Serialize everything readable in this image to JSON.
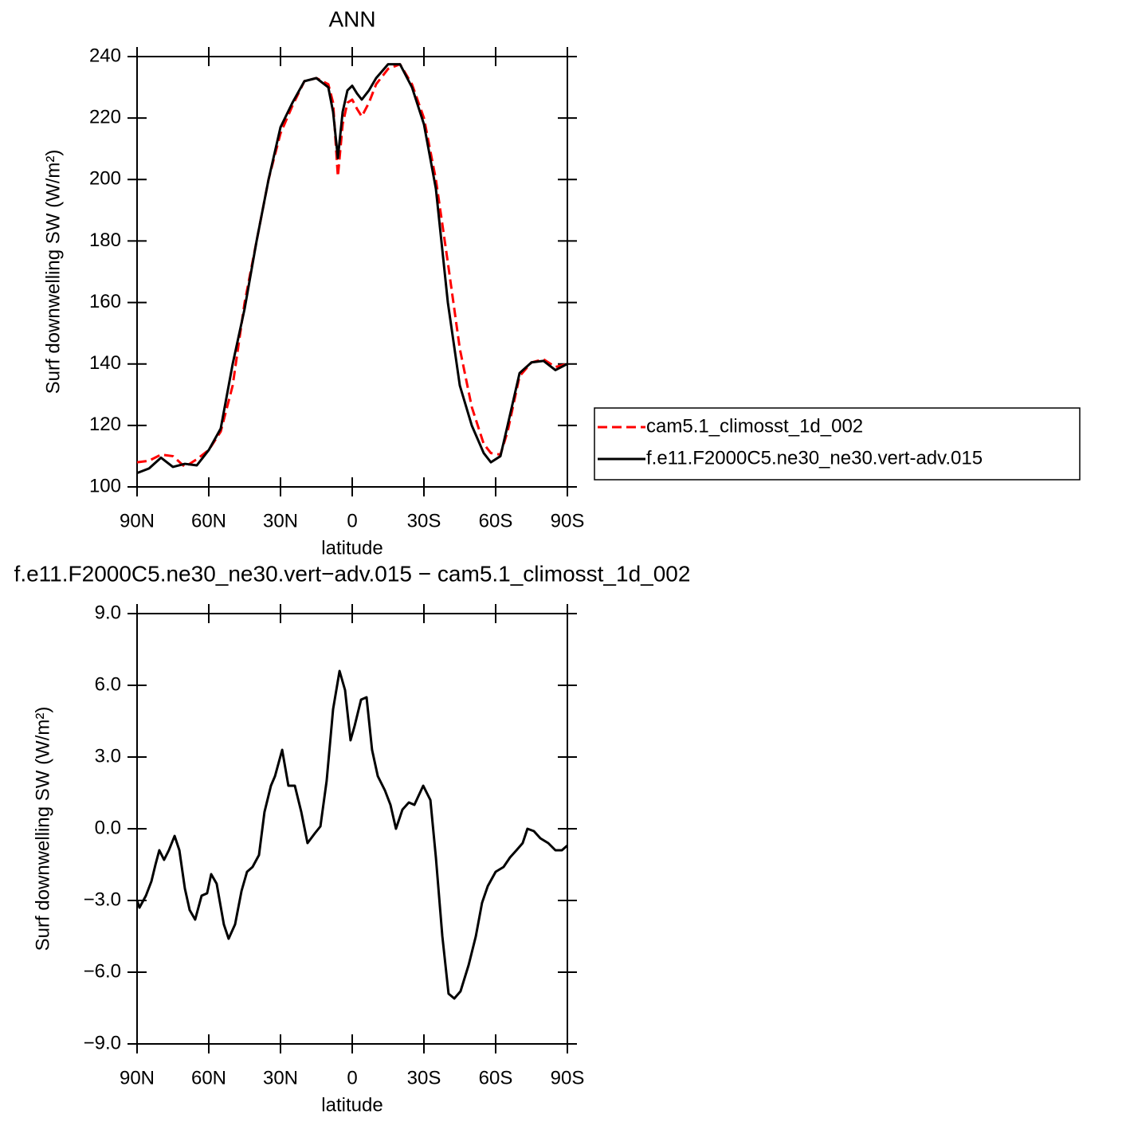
{
  "chart_data": [
    {
      "type": "line",
      "title": "ANN",
      "xlabel": "latitude",
      "ylabel": "Surf downwelling SW (W/m²)",
      "x": [
        90,
        85,
        80,
        75,
        70,
        65,
        60,
        55,
        50,
        45,
        40,
        35,
        30,
        25,
        20,
        15,
        10,
        8,
        6,
        4,
        2,
        0,
        -2,
        -4,
        -7,
        -10,
        -15,
        -20,
        -25,
        -30,
        -35,
        -40,
        -45,
        -50,
        -55,
        -58,
        -62,
        -65,
        -70,
        -75,
        -80,
        -85,
        -90
      ],
      "series": [
        {
          "name": "cam5.1_climosst_1d_002",
          "color": "#ff0000",
          "linestyle": "dashed",
          "values": [
            108,
            108.5,
            110.5,
            110,
            106.5,
            109,
            112,
            118,
            133,
            160,
            180,
            200,
            215,
            224,
            232,
            233,
            231,
            225,
            201,
            218,
            225,
            226,
            223,
            220.5,
            225,
            231,
            236,
            237.5,
            231,
            220,
            200,
            173,
            145,
            126,
            114,
            111,
            110.5,
            118,
            136,
            140.5,
            141.5,
            139,
            140
          ]
        },
        {
          "name": "f.e11.F2000C5.ne30_ne30.vert-adv.015",
          "color": "#000000",
          "linestyle": "solid",
          "values": [
            104.5,
            106,
            109.5,
            106.5,
            107.5,
            107,
            112,
            119,
            140,
            158,
            180,
            200,
            217,
            225,
            232,
            233,
            230,
            222,
            207,
            222,
            229,
            230.5,
            228,
            226,
            229,
            233,
            237.5,
            237.5,
            230,
            218,
            197,
            160,
            133,
            120,
            111,
            108,
            110,
            120,
            137,
            140.5,
            141,
            138,
            140
          ]
        }
      ],
      "xlim": [
        90,
        -90
      ],
      "xticks": [
        {
          "value": 90,
          "label": "90N"
        },
        {
          "value": 60,
          "label": "60N"
        },
        {
          "value": 30,
          "label": "30N"
        },
        0,
        {
          "value": -30,
          "label": "30S"
        },
        {
          "value": -60,
          "label": "60S"
        },
        {
          "value": -90,
          "label": "90S"
        }
      ],
      "ylim": [
        100,
        240
      ],
      "yticks": [
        100,
        120,
        140,
        160,
        180,
        200,
        220,
        240
      ],
      "legend": "right"
    },
    {
      "type": "line",
      "title": "f.e11.F2000C5.ne30_ne30.vert−adv.015 − cam5.1_climosst_1d_002",
      "xlabel": "latitude",
      "ylabel": "Surf downwelling SW (W/m²)",
      "x": [
        90,
        89,
        86.3,
        84,
        82.3,
        80.7,
        78.7,
        76.7,
        74.3,
        72.3,
        70,
        68,
        65.7,
        63,
        60.7,
        59,
        56.7,
        53.7,
        51.7,
        49,
        46.3,
        44,
        41.7,
        39,
        36.7,
        34,
        32.3,
        29.3,
        26.7,
        24,
        21.3,
        18.7,
        15.7,
        13.3,
        10.7,
        8,
        5.3,
        3,
        0.7,
        -1,
        -3.7,
        -6,
        -8.3,
        -10.7,
        -13.7,
        -16,
        -18.3,
        -21,
        -23.7,
        -26,
        -29.7,
        -32.7,
        -35,
        -37.7,
        -40.3,
        -42.7,
        -45.3,
        -48.7,
        -51.7,
        -54.3,
        -56.7,
        -60,
        -63.3,
        -66,
        -68.7,
        -71.3,
        -73.3,
        -76,
        -78.7,
        -82,
        -85,
        -87.7,
        -90
      ],
      "series": [
        {
          "color": "#000000",
          "linestyle": "solid",
          "values": [
            -3.0,
            -3.3,
            -2.8,
            -2.2,
            -1.5,
            -0.9,
            -1.3,
            -0.9,
            -0.3,
            -0.9,
            -2.5,
            -3.4,
            -3.8,
            -2.8,
            -2.7,
            -1.9,
            -2.3,
            -4.0,
            -4.6,
            -4.0,
            -2.6,
            -1.8,
            -1.6,
            -1.1,
            0.7,
            1.8,
            2.2,
            3.3,
            1.8,
            1.8,
            0.7,
            -0.6,
            -0.2,
            0.1,
            2.0,
            5.0,
            6.6,
            5.8,
            3.7,
            4.3,
            5.4,
            5.5,
            3.3,
            2.2,
            1.6,
            1.0,
            0.0,
            0.8,
            1.1,
            1.0,
            1.8,
            1.2,
            -1.2,
            -4.5,
            -6.9,
            -7.1,
            -6.8,
            -5.7,
            -4.5,
            -3.1,
            -2.4,
            -1.8,
            -1.6,
            -1.2,
            -0.9,
            -0.6,
            0.0,
            -0.1,
            -0.4,
            -0.6,
            -0.9,
            -0.9,
            -0.7
          ]
        }
      ],
      "xlim": [
        90,
        -90
      ],
      "xticks": [
        {
          "value": 90,
          "label": "90N"
        },
        {
          "value": 60,
          "label": "60N"
        },
        {
          "value": 30,
          "label": "30N"
        },
        0,
        {
          "value": -30,
          "label": "30S"
        },
        {
          "value": -60,
          "label": "60S"
        },
        {
          "value": -90,
          "label": "90S"
        }
      ],
      "ylim": [
        -9,
        9
      ],
      "yticks": [
        {
          "value": -9,
          "label": "−9.0"
        },
        {
          "value": -6,
          "label": "−6.0"
        },
        {
          "value": -3,
          "label": "−3.0"
        },
        {
          "value": 0,
          "label": "0.0"
        },
        {
          "value": 3,
          "label": "3.0"
        },
        {
          "value": 6,
          "label": "6.0"
        },
        {
          "value": 9,
          "label": "9.0"
        }
      ]
    }
  ]
}
